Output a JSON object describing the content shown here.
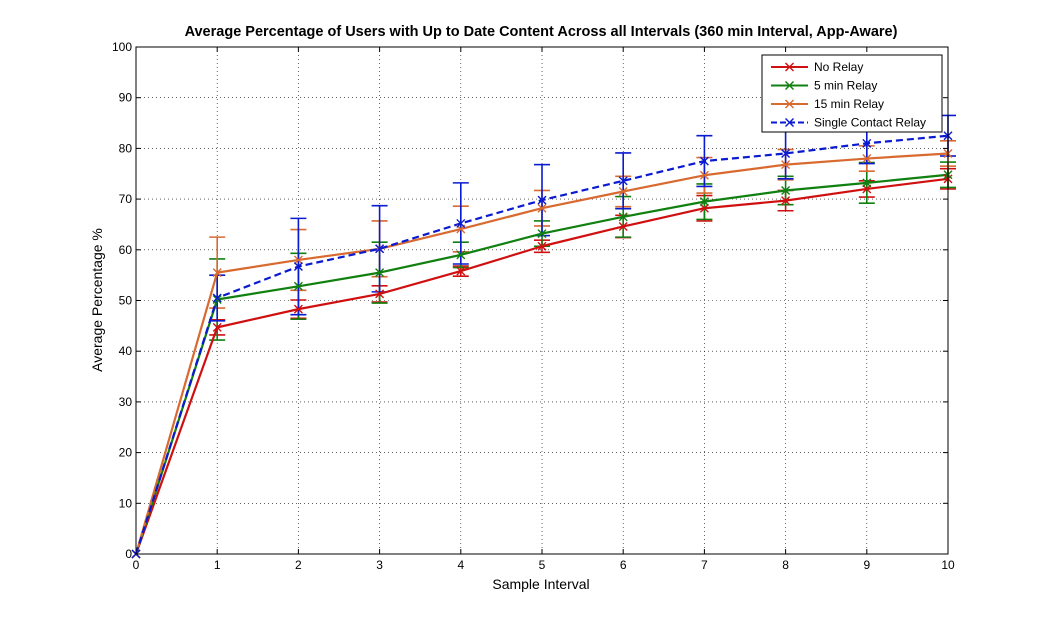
{
  "chart_data": {
    "type": "line",
    "title": "Average Percentage of Users with Up to Date Content Across all Intervals (360 min Interval, App-Aware)",
    "xlabel": "Sample Interval",
    "ylabel": "Average Percentage %",
    "xlim": [
      0,
      10
    ],
    "ylim": [
      0,
      100
    ],
    "x": [
      0,
      1,
      2,
      3,
      4,
      5,
      6,
      7,
      8,
      9,
      10
    ],
    "xticks": [
      "0",
      "1",
      "2",
      "3",
      "4",
      "5",
      "6",
      "7",
      "8",
      "9",
      "10"
    ],
    "yticks": [
      "0",
      "10",
      "20",
      "30",
      "40",
      "50",
      "60",
      "70",
      "80",
      "90",
      "100"
    ],
    "grid": true,
    "legend_position": "top-right",
    "series": [
      {
        "name": "No Relay",
        "color": "#d01010",
        "line_style": "solid",
        "marker": "x",
        "values": [
          0,
          44.7,
          48.3,
          51.3,
          55.8,
          60.7,
          64.6,
          68.2,
          69.7,
          72.0,
          74.0
        ],
        "error": [
          0,
          1.5,
          1.8,
          1.6,
          1.0,
          1.2,
          2.2,
          2.5,
          2.0,
          1.6,
          2.0
        ]
      },
      {
        "name": "5 min Relay",
        "color": "#108010",
        "line_style": "solid",
        "marker": "x",
        "values": [
          0,
          50.2,
          52.8,
          55.5,
          59.0,
          63.2,
          66.5,
          69.5,
          71.7,
          73.2,
          74.8
        ],
        "error": [
          0,
          8.0,
          6.5,
          6.0,
          2.5,
          2.5,
          4.0,
          3.5,
          2.8,
          4.0,
          2.5
        ]
      },
      {
        "name": "15 min Relay",
        "color": "#d86a30",
        "line_style": "solid",
        "marker": "x",
        "values": [
          0,
          55.5,
          58.0,
          60.2,
          64.1,
          68.2,
          71.5,
          74.7,
          76.8,
          78.0,
          79.0
        ],
        "error": [
          0,
          7.0,
          6.0,
          5.5,
          4.5,
          3.5,
          3.0,
          3.5,
          3.0,
          2.5,
          2.5
        ]
      },
      {
        "name": "Single Contact Relay",
        "color": "#0a1ad0",
        "line_style": "dashed",
        "marker": "x",
        "values": [
          0,
          50.5,
          56.7,
          60.2,
          65.2,
          69.8,
          73.6,
          77.5,
          79.0,
          81.0,
          82.5
        ],
        "error": [
          0,
          4.5,
          9.5,
          8.5,
          8.0,
          7.0,
          5.5,
          5.0,
          5.0,
          4.0,
          4.0
        ]
      }
    ]
  }
}
